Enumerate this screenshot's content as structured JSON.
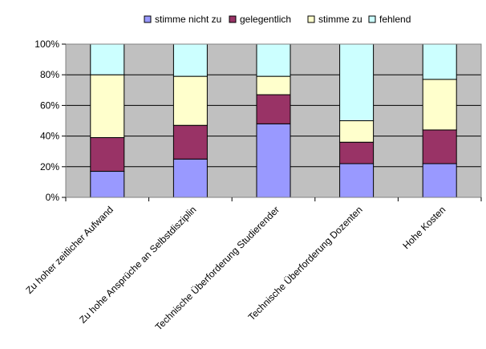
{
  "chart_data": {
    "type": "bar",
    "stacked": true,
    "percent_stacked": true,
    "title": "",
    "xlabel": "",
    "ylabel": "",
    "ylim": [
      0,
      100
    ],
    "y_ticks": [
      0,
      20,
      40,
      60,
      80,
      100
    ],
    "y_tick_labels": [
      "0%",
      "20%",
      "40%",
      "60%",
      "80%",
      "100%"
    ],
    "grid": true,
    "legend_position": "top",
    "categories": [
      "Zu hoher zeitlicher Aufwand",
      "Zu hohe Ansprüche an Selbstdisziplin",
      "Technische Überforderung Studierender",
      "Technische Überforderung Dozenten",
      "Hohe Kosten"
    ],
    "series": [
      {
        "name": "stimme nicht zu",
        "color": "#9999ff",
        "values": [
          17,
          25,
          48,
          22,
          22
        ]
      },
      {
        "name": "gelegentlich",
        "color": "#993366",
        "values": [
          22,
          22,
          19,
          14,
          22
        ]
      },
      {
        "name": "stimme zu",
        "color": "#ffffcc",
        "values": [
          41,
          32,
          12,
          14,
          33
        ]
      },
      {
        "name": "fehlend",
        "color": "#ccffff",
        "values": [
          20,
          21,
          21,
          50,
          23
        ]
      }
    ],
    "colors": {
      "plot_background": "#c0c0c0",
      "gridline": "#000000",
      "bar_outline": "#000000"
    }
  }
}
